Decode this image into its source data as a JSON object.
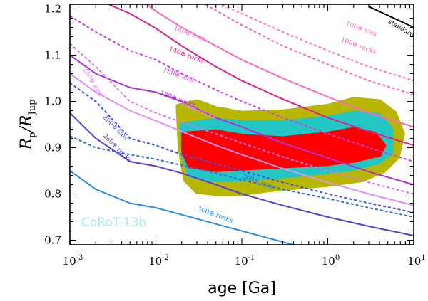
{
  "chart_data": {
    "type": "line",
    "xscale": "log",
    "xlim": [
      0.001,
      10
    ],
    "ylim": [
      0.69,
      1.21
    ],
    "xlabel": "age [Ga]",
    "ylabel": {
      "main": "R",
      "sub": "p",
      "sep": "/R",
      "sub2": "Jup"
    },
    "x_ticks": [
      {
        "value": 0.001,
        "base": "10",
        "exp": "-3"
      },
      {
        "value": 0.01,
        "base": "10",
        "exp": "-2"
      },
      {
        "value": 0.1,
        "base": "10",
        "exp": "-1"
      },
      {
        "value": 1,
        "base": "10",
        "exp": "0"
      },
      {
        "value": 10,
        "base": "10",
        "exp": "1"
      }
    ],
    "y_ticks": [
      {
        "value": 0.7,
        "label": "0.7"
      },
      {
        "value": 0.8,
        "label": "0.8"
      },
      {
        "value": 0.9,
        "label": "0.9"
      },
      {
        "value": 1.0,
        "label": "1.0"
      },
      {
        "value": 1.1,
        "label": "1.1"
      },
      {
        "value": 1.2,
        "label": "1.2"
      }
    ],
    "object_label": "CoRoT-13b",
    "series": [
      {
        "name": "standard model",
        "color": "#000000",
        "dash": false,
        "label": "standard model",
        "labelAt": [
          5.0,
          1.17,
          30
        ],
        "points": [
          [
            3.0,
            1.205
          ],
          [
            10,
            1.16
          ]
        ]
      },
      {
        "name": "140 ices",
        "color": "#ff66c0",
        "dash": false,
        "label": "140⊕ ices",
        "labelAt": [
          0.016,
          1.155,
          20
        ],
        "points": [
          [
            0.001,
            1.32
          ],
          [
            0.004,
            1.25
          ],
          [
            0.01,
            1.195
          ],
          [
            0.02,
            1.16
          ],
          [
            0.05,
            1.12
          ],
          [
            0.1,
            1.09
          ],
          [
            0.3,
            1.05
          ],
          [
            1,
            1.01
          ],
          [
            3,
            0.975
          ],
          [
            10,
            0.945
          ]
        ]
      },
      {
        "name": "140 rocks",
        "color": "#e0208a",
        "dash": false,
        "label": "140⊕ rocks",
        "labelAt": [
          0.014,
          1.11,
          20
        ],
        "points": [
          [
            0.001,
            1.24
          ],
          [
            0.002,
            1.222
          ],
          [
            0.005,
            1.19
          ],
          [
            0.01,
            1.158
          ],
          [
            0.02,
            1.12
          ],
          [
            0.05,
            1.075
          ],
          [
            0.1,
            1.045
          ],
          [
            0.3,
            1.005
          ],
          [
            1,
            0.965
          ],
          [
            3,
            0.935
          ],
          [
            10,
            0.905
          ]
        ]
      },
      {
        "name": "100 ices",
        "color": "#ff77c8",
        "dash": true,
        "label": "100⊕ ices",
        "labelAt": [
          1.6,
          1.165,
          20
        ],
        "points": [
          [
            0.02,
            1.25
          ],
          [
            0.05,
            1.215
          ],
          [
            0.1,
            1.19
          ],
          [
            0.3,
            1.15
          ],
          [
            1,
            1.11
          ],
          [
            3,
            1.075
          ],
          [
            10,
            1.045
          ]
        ]
      },
      {
        "name": "100 rocks",
        "color": "#ff66b8",
        "dash": true,
        "label": "100⊕ rocks",
        "labelAt": [
          1.4,
          1.13,
          20
        ],
        "points": [
          [
            0.03,
            1.22
          ],
          [
            0.1,
            1.165
          ],
          [
            0.3,
            1.12
          ],
          [
            1,
            1.08
          ],
          [
            3,
            1.045
          ],
          [
            10,
            1.015
          ]
        ]
      },
      {
        "name": "180 ices",
        "color": "#d040e8",
        "dash": true,
        "label": "180⊕ ices",
        "labelAt": [
          0.012,
          1.065,
          20
        ],
        "points": [
          [
            0.001,
            1.185
          ],
          [
            0.002,
            1.15
          ],
          [
            0.005,
            1.11
          ],
          [
            0.01,
            1.09
          ],
          [
            0.02,
            1.06
          ],
          [
            0.05,
            1.025
          ],
          [
            0.1,
            1.0
          ],
          [
            0.3,
            0.965
          ],
          [
            1,
            0.93
          ],
          [
            3,
            0.9
          ],
          [
            10,
            0.87
          ]
        ]
      },
      {
        "name": "180 rocks",
        "color": "#b030d8",
        "dash": false,
        "label": "180⊕ rocks",
        "labelAt": [
          0.011,
          1.015,
          20
        ],
        "points": [
          [
            0.001,
            1.1
          ],
          [
            0.002,
            1.06
          ],
          [
            0.005,
            1.03
          ],
          [
            0.01,
            1.02
          ],
          [
            0.02,
            1.0
          ],
          [
            0.05,
            0.965
          ],
          [
            0.1,
            0.945
          ],
          [
            0.3,
            0.91
          ],
          [
            1,
            0.878
          ],
          [
            3,
            0.848
          ],
          [
            10,
            0.82
          ]
        ]
      },
      {
        "name": "220 ices",
        "color": "#e070f8",
        "dash": true,
        "label": "220⊕ ices",
        "labelAt": [
          0.0014,
          1.07,
          58
        ],
        "points": [
          [
            0.001,
            1.125
          ],
          [
            0.002,
            1.075
          ],
          [
            0.005,
            1.0
          ],
          [
            0.01,
            0.975
          ],
          [
            0.02,
            0.955
          ],
          [
            0.05,
            0.93
          ],
          [
            0.1,
            0.91
          ],
          [
            0.3,
            0.88
          ],
          [
            1,
            0.85
          ],
          [
            3,
            0.825
          ],
          [
            10,
            0.8
          ]
        ]
      },
      {
        "name": "220 rocks",
        "color": "#e090f0",
        "dash": false,
        "label": "220⊕ rocks",
        "labelAt": [
          0.019,
          0.99,
          20
        ],
        "points": [
          [
            0.001,
            1.06
          ],
          [
            0.002,
            1.02
          ],
          [
            0.005,
            0.98
          ],
          [
            0.01,
            0.958
          ],
          [
            0.02,
            0.935
          ],
          [
            0.05,
            0.905
          ],
          [
            0.1,
            0.885
          ],
          [
            0.3,
            0.855
          ],
          [
            1,
            0.825
          ],
          [
            3,
            0.8
          ],
          [
            10,
            0.775
          ]
        ]
      },
      {
        "name": "260 ices",
        "color": "#4050e8",
        "dash": true,
        "label": "260⊕ ices",
        "labelAt": [
          0.0024,
          0.965,
          45
        ],
        "points": [
          [
            0.001,
            1.04
          ],
          [
            0.002,
            1.0
          ],
          [
            0.005,
            0.92
          ],
          [
            0.01,
            0.905
          ],
          [
            0.02,
            0.885
          ],
          [
            0.05,
            0.865
          ],
          [
            0.1,
            0.85
          ],
          [
            0.3,
            0.825
          ],
          [
            1,
            0.8
          ],
          [
            3,
            0.78
          ],
          [
            10,
            0.76
          ]
        ]
      },
      {
        "name": "260 rocks",
        "color": "#5a3ed8",
        "dash": false,
        "label": "260⊕ rocks",
        "labelAt": [
          0.0024,
          0.925,
          45
        ],
        "points": [
          [
            0.001,
            0.975
          ],
          [
            0.002,
            0.92
          ],
          [
            0.005,
            0.87
          ],
          [
            0.01,
            0.86
          ],
          [
            0.02,
            0.845
          ],
          [
            0.05,
            0.82
          ],
          [
            0.1,
            0.8
          ],
          [
            0.3,
            0.775
          ],
          [
            1,
            0.75
          ],
          [
            3,
            0.73
          ],
          [
            10,
            0.71
          ]
        ]
      },
      {
        "name": "300 ices",
        "color": "#2f70e0",
        "dash": true,
        "label": "300⊕ ices",
        "labelAt": [
          0.1,
          0.835,
          20
        ],
        "points": [
          [
            0.001,
            0.925
          ],
          [
            0.002,
            0.9
          ],
          [
            0.005,
            0.885
          ],
          [
            0.01,
            0.875
          ],
          [
            0.02,
            0.862
          ],
          [
            0.05,
            0.845
          ],
          [
            0.1,
            0.83
          ],
          [
            0.3,
            0.81
          ],
          [
            1,
            0.79
          ],
          [
            3,
            0.77
          ],
          [
            10,
            0.75
          ]
        ]
      },
      {
        "name": "300 rocks",
        "color": "#2a8ee8",
        "dash": false,
        "label": "300⊕ rocks",
        "labelAt": [
          0.03,
          0.765,
          20
        ],
        "points": [
          [
            0.001,
            0.85
          ],
          [
            0.002,
            0.81
          ],
          [
            0.005,
            0.78
          ],
          [
            0.01,
            0.77
          ],
          [
            0.02,
            0.755
          ],
          [
            0.05,
            0.735
          ],
          [
            0.1,
            0.72
          ],
          [
            0.2,
            0.705
          ],
          [
            0.5,
            0.685
          ]
        ]
      }
    ],
    "confidence_regions": [
      {
        "name": "3-sigma",
        "color": "#b7b600",
        "points": [
          [
            0.018,
            0.99
          ],
          [
            0.03,
            1.0
          ],
          [
            0.05,
            0.985
          ],
          [
            0.1,
            0.975
          ],
          [
            0.3,
            0.978
          ],
          [
            1,
            0.99
          ],
          [
            2,
            1.005
          ],
          [
            4,
            1.0
          ],
          [
            6,
            0.975
          ],
          [
            7.5,
            0.93
          ],
          [
            6.5,
            0.88
          ],
          [
            4.5,
            0.85
          ],
          [
            2.5,
            0.83
          ],
          [
            1,
            0.82
          ],
          [
            0.5,
            0.815
          ],
          [
            0.2,
            0.808
          ],
          [
            0.1,
            0.8
          ],
          [
            0.05,
            0.8
          ],
          [
            0.03,
            0.805
          ],
          [
            0.022,
            0.83
          ],
          [
            0.019,
            0.9
          ]
        ]
      },
      {
        "name": "2-sigma",
        "color": "#23c6c4",
        "points": [
          [
            0.02,
            0.95
          ],
          [
            0.05,
            0.96
          ],
          [
            0.1,
            0.955
          ],
          [
            0.3,
            0.955
          ],
          [
            1,
            0.965
          ],
          [
            2,
            0.975
          ],
          [
            4,
            0.97
          ],
          [
            5.5,
            0.94
          ],
          [
            5.5,
            0.89
          ],
          [
            4,
            0.87
          ],
          [
            2,
            0.855
          ],
          [
            1,
            0.848
          ],
          [
            0.3,
            0.838
          ],
          [
            0.1,
            0.832
          ],
          [
            0.05,
            0.83
          ],
          [
            0.025,
            0.84
          ],
          [
            0.021,
            0.88
          ]
        ]
      },
      {
        "name": "1-sigma",
        "color": "#ff0000",
        "points": [
          [
            0.021,
            0.93
          ],
          [
            0.05,
            0.935
          ],
          [
            0.1,
            0.925
          ],
          [
            0.3,
            0.92
          ],
          [
            1,
            0.93
          ],
          [
            2,
            0.94
          ],
          [
            3.5,
            0.93
          ],
          [
            4.5,
            0.905
          ],
          [
            4,
            0.885
          ],
          [
            2,
            0.872
          ],
          [
            1,
            0.865
          ],
          [
            0.3,
            0.86
          ],
          [
            0.1,
            0.855
          ],
          [
            0.05,
            0.852
          ],
          [
            0.025,
            0.86
          ],
          [
            0.021,
            0.89
          ]
        ]
      }
    ]
  }
}
